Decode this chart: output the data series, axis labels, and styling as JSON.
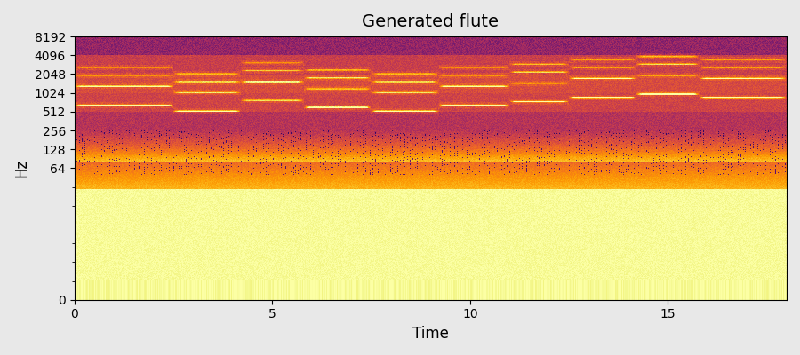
{
  "title": "Generated flute",
  "xlabel": "Time",
  "ylabel": "Hz",
  "x_max": 18.0,
  "y_ticks": [
    0,
    64,
    128,
    256,
    512,
    1024,
    2048,
    4096,
    8192
  ],
  "x_ticks": [
    0,
    5,
    10,
    15
  ],
  "colormap": "inferno",
  "background_color": "#000000",
  "fig_facecolor": "#e8e8e8",
  "seed": 42,
  "n_time": 860,
  "n_freq_display": 400,
  "f_min": 0,
  "f_max": 8192,
  "title_fontsize": 14,
  "axis_fontsize": 12,
  "note_segments": [
    [
      0,
      2.5,
      660,
      1320,
      1980,
      2640
    ],
    [
      2.5,
      4.2,
      520,
      1040,
      1560,
      2080
    ],
    [
      4.2,
      5.8,
      780,
      1560,
      2340,
      3120
    ],
    [
      5.8,
      7.5,
      600,
      1200,
      1800,
      2400
    ],
    [
      7.5,
      9.2,
      520,
      1040,
      1560,
      2080
    ],
    [
      9.2,
      11.0,
      660,
      1320,
      1980,
      2640
    ],
    [
      11.0,
      12.5,
      740,
      1480,
      2220,
      2960
    ],
    [
      12.5,
      14.2,
      880,
      1760,
      2640,
      3520
    ],
    [
      14.2,
      15.8,
      990,
      1980,
      2970,
      3960
    ],
    [
      15.8,
      18.0,
      880,
      1760,
      2640,
      3520
    ]
  ]
}
